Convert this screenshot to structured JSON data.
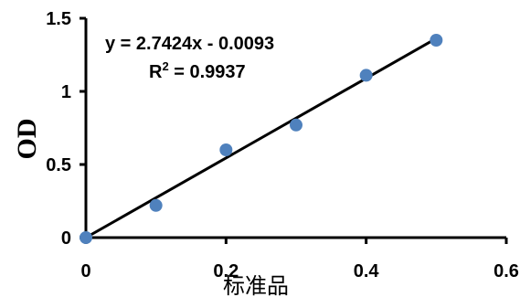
{
  "chart_data": {
    "type": "scatter",
    "xlabel": "标准品",
    "ylabel": "OD",
    "xlim": [
      0,
      0.6
    ],
    "ylim": [
      0,
      1.5
    ],
    "x_ticks": [
      "0",
      "0.2",
      "0.4",
      "0.6"
    ],
    "y_ticks": [
      "0",
      "0.5",
      "1",
      "1.5"
    ],
    "series": [
      {
        "color": "#4f81bd",
        "x": [
          0,
          0.1,
          0.2,
          0.3,
          0.4,
          0.5
        ],
        "y": [
          0,
          0.22,
          0.6,
          0.77,
          1.11,
          1.35
        ]
      }
    ],
    "trendline": {
      "slope": 2.7424,
      "intercept": -0.0093,
      "color": "#000000"
    },
    "equation": "y = 2.7424x - 0.0093",
    "r2_label": "R",
    "r2_sup": "2",
    "r2_value": " = 0.9937"
  }
}
